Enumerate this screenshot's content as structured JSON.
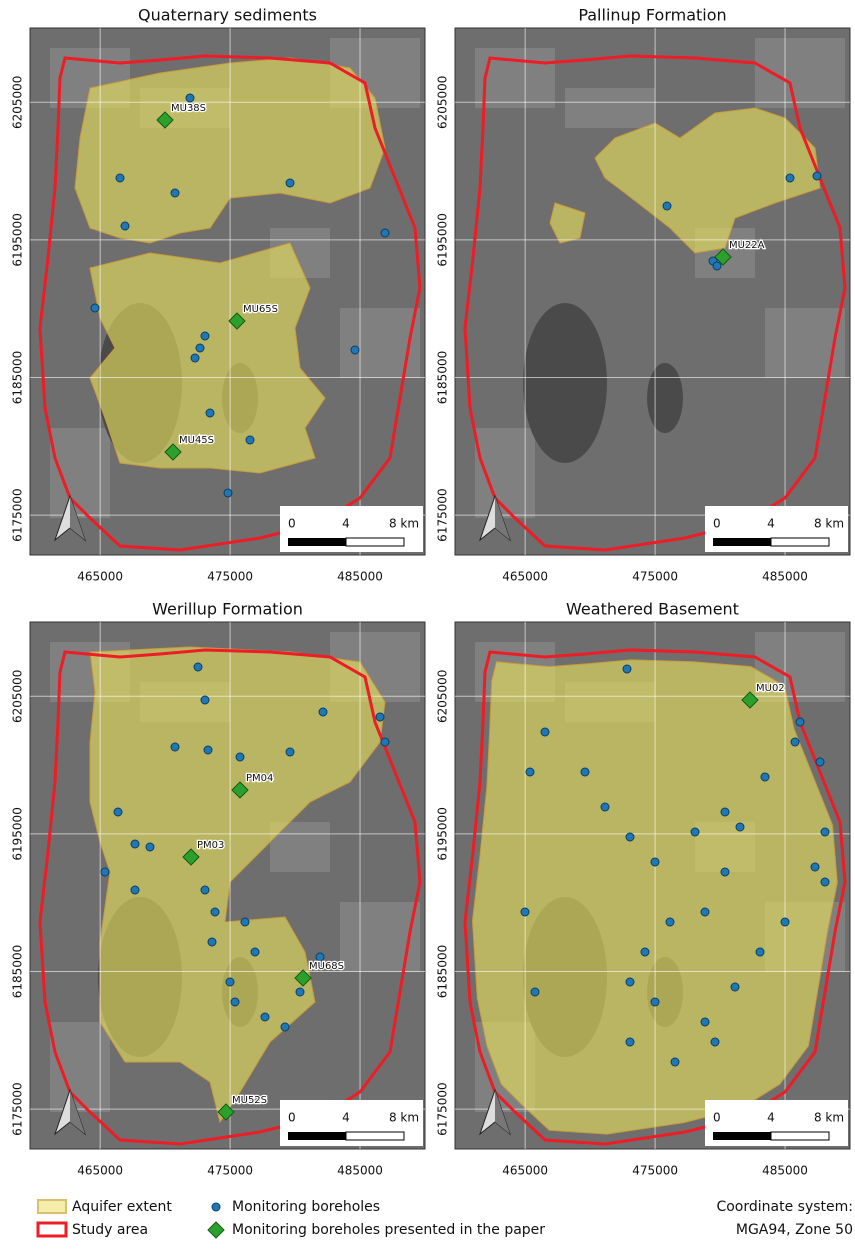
{
  "panels": [
    {
      "title": "Quaternary sediments",
      "boreholes": [
        "MU38S",
        "MU65S",
        "MU45S"
      ]
    },
    {
      "title": "Pallinup Formation",
      "boreholes": [
        "MU22A"
      ]
    },
    {
      "title": "Werillup Formation",
      "boreholes": [
        "PM04",
        "PM03",
        "MU68S",
        "MU52S"
      ]
    },
    {
      "title": "Weathered Basement",
      "boreholes": [
        "MU02"
      ]
    }
  ],
  "axes": {
    "xlim": [
      459600,
      490000
    ],
    "ylim": [
      6172100,
      6210400
    ],
    "xticks": [
      465000,
      475000,
      485000
    ],
    "yticks": [
      6175000,
      6185000,
      6195000,
      6205000
    ]
  },
  "scale_bar": {
    "labels": [
      "0",
      "4",
      "8 km"
    ]
  },
  "legend": {
    "aquifer": "Aquifer extent",
    "study": "Study area",
    "boreholes": "Monitoring boreholes",
    "presented": "Monitoring boreholes presented in the paper"
  },
  "coordinate_system": [
    "Coordinate system:",
    "MGA94, Zone 50"
  ]
}
